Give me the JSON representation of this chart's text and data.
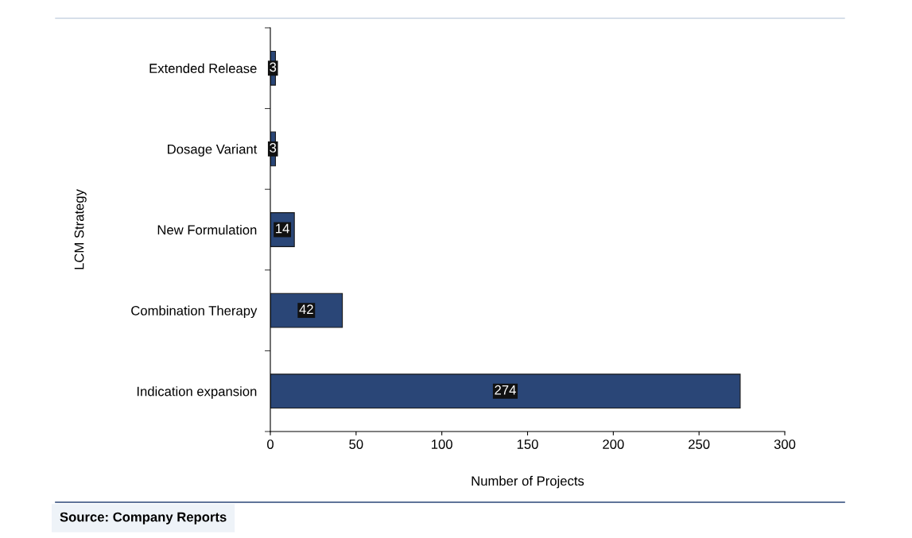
{
  "chart_data": {
    "type": "bar",
    "orientation": "horizontal",
    "xlabel": "Number of Projects",
    "ylabel": "LCM Strategy",
    "categories": [
      "Extended Release",
      "Dosage Variant",
      "New Formulation",
      "Combination Therapy",
      "Indication expansion"
    ],
    "values": [
      3,
      3,
      14,
      42,
      274
    ],
    "color": "#2a4677",
    "xlim": [
      0,
      300
    ],
    "xticks": [
      0,
      50,
      100,
      150,
      200,
      250,
      300
    ],
    "grid": false,
    "data_labels": true,
    "annotations": [
      "Source: Company Reports"
    ]
  }
}
